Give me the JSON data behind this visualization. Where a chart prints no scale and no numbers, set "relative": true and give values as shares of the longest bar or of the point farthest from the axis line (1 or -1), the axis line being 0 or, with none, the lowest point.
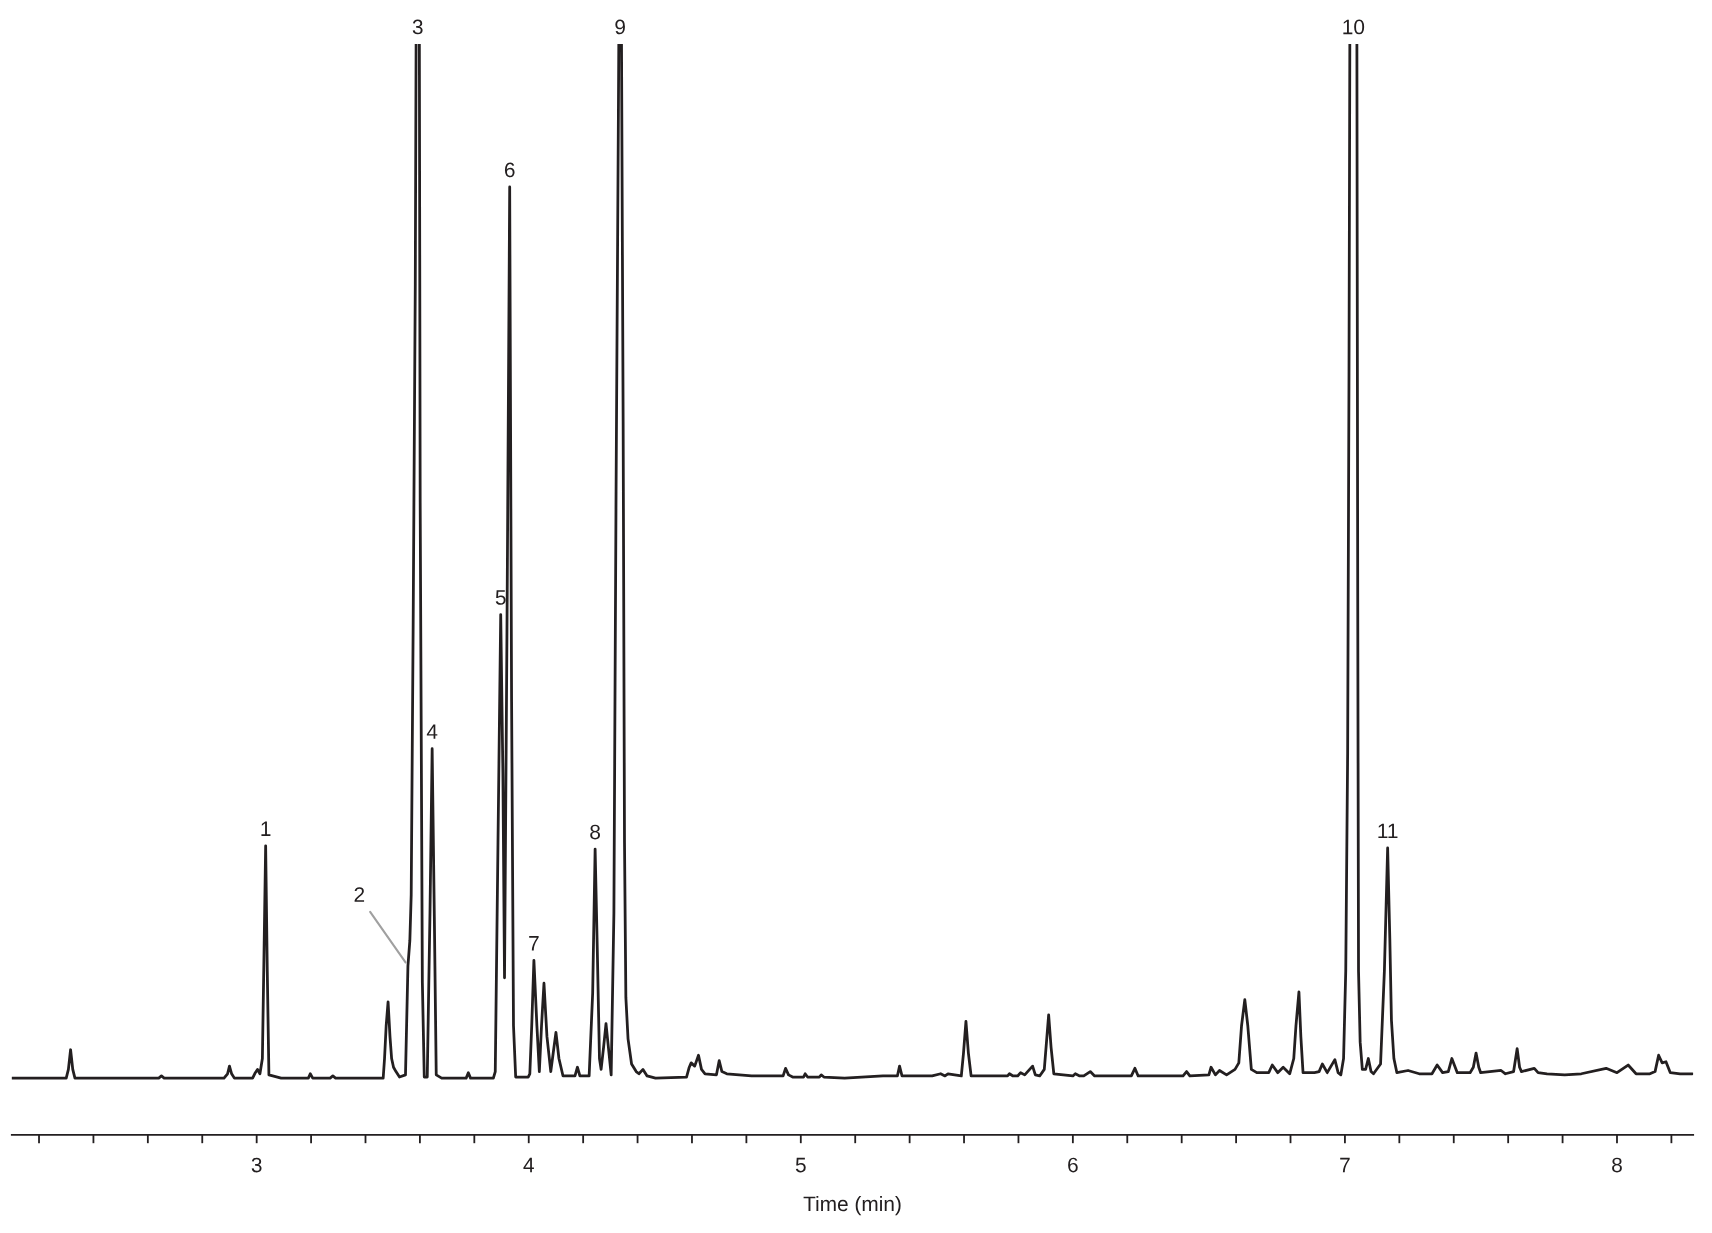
{
  "chart_data": {
    "type": "line",
    "relative": true,
    "xlabel": "Time (min)",
    "color": "#231f20",
    "line_style": "solid",
    "xlim": [
      2.1,
      8.28
    ],
    "xticks": [
      {
        "value": 2.2,
        "label": null
      },
      {
        "value": 2.4,
        "label": null
      },
      {
        "value": 2.6,
        "label": null
      },
      {
        "value": 2.8,
        "label": null
      },
      3,
      {
        "value": 3.2,
        "label": null
      },
      {
        "value": 3.4,
        "label": null
      },
      {
        "value": 3.6,
        "label": null
      },
      {
        "value": 3.8,
        "label": null
      },
      4,
      {
        "value": 4.2,
        "label": null
      },
      {
        "value": 4.4,
        "label": null
      },
      {
        "value": 4.6,
        "label": null
      },
      {
        "value": 4.8,
        "label": null
      },
      5,
      {
        "value": 5.2,
        "label": null
      },
      {
        "value": 5.4,
        "label": null
      },
      {
        "value": 5.6,
        "label": null
      },
      {
        "value": 5.8,
        "label": null
      },
      6,
      {
        "value": 6.2,
        "label": null
      },
      {
        "value": 6.4,
        "label": null
      },
      {
        "value": 6.6,
        "label": null
      },
      {
        "value": 6.8,
        "label": null
      },
      7,
      {
        "value": 7.2,
        "label": null
      },
      {
        "value": 7.4,
        "label": null
      },
      {
        "value": 7.6,
        "label": null
      },
      {
        "value": 7.8,
        "label": null
      },
      8,
      {
        "value": 8.2,
        "label": null
      }
    ],
    "x": [
      2.1,
      2.3,
      2.308,
      2.316,
      2.324,
      2.332,
      2.64,
      2.65,
      2.66,
      2.88,
      2.893,
      2.9,
      2.908,
      2.918,
      2.985,
      2.995,
      3.003,
      3.012,
      3.021,
      3.026,
      3.033,
      3.039,
      3.045,
      3.09,
      3.19,
      3.197,
      3.206,
      3.27,
      3.28,
      3.29,
      3.465,
      3.47,
      3.476,
      3.483,
      3.49,
      3.496,
      3.503,
      3.512,
      3.525,
      3.547,
      3.556,
      3.563,
      3.568,
      3.575,
      3.583,
      3.586,
      3.592,
      3.598,
      3.601,
      3.609,
      3.616,
      3.627,
      3.637,
      3.645,
      3.653,
      3.66,
      3.68,
      3.77,
      3.778,
      3.786,
      3.87,
      3.877,
      3.887,
      3.897,
      3.905,
      3.911,
      3.92,
      3.93,
      3.937,
      3.944,
      3.952,
      3.998,
      4.004,
      4.011,
      4.019,
      4.03,
      4.039,
      4.047,
      4.056,
      4.067,
      4.081,
      4.09,
      4.1,
      4.111,
      4.126,
      4.17,
      4.179,
      4.188,
      4.222,
      4.235,
      4.244,
      4.252,
      4.26,
      4.266,
      4.275,
      4.284,
      4.295,
      4.303,
      4.313,
      4.321,
      4.329,
      4.331,
      4.336,
      4.341,
      4.347,
      4.352,
      4.357,
      4.365,
      4.378,
      4.395,
      4.405,
      4.42,
      4.435,
      4.466,
      4.58,
      4.59,
      4.597,
      4.61,
      4.624,
      4.635,
      4.648,
      4.69,
      4.7,
      4.71,
      4.728,
      4.819,
      4.935,
      4.944,
      4.955,
      4.97,
      5.01,
      5.016,
      5.025,
      5.068,
      5.075,
      5.085,
      5.161,
      5.302,
      5.355,
      5.363,
      5.372,
      5.483,
      5.514,
      5.53,
      5.541,
      5.59,
      5.598,
      5.607,
      5.616,
      5.626,
      5.76,
      5.767,
      5.78,
      5.797,
      5.808,
      5.823,
      5.852,
      5.862,
      5.878,
      5.895,
      5.903,
      5.911,
      5.92,
      5.93,
      6.0,
      6.009,
      6.025,
      6.04,
      6.064,
      6.08,
      6.111,
      6.215,
      6.228,
      6.24,
      6.405,
      6.418,
      6.43,
      6.5,
      6.508,
      6.524,
      6.539,
      6.565,
      6.596,
      6.61,
      6.62,
      6.632,
      6.643,
      6.656,
      6.676,
      6.72,
      6.733,
      6.753,
      6.773,
      6.797,
      6.812,
      6.82,
      6.831,
      6.838,
      6.846,
      6.888,
      6.905,
      6.917,
      6.935,
      6.963,
      6.975,
      6.985,
      6.995,
      7.003,
      7.01,
      7.015,
      7.018,
      7.031,
      7.044,
      7.047,
      7.05,
      7.056,
      7.064,
      7.076,
      7.086,
      7.096,
      7.105,
      7.131,
      7.145,
      7.157,
      7.165,
      7.171,
      7.18,
      7.191,
      7.232,
      7.273,
      7.32,
      7.339,
      7.359,
      7.38,
      7.393,
      7.413,
      7.46,
      7.472,
      7.482,
      7.492,
      7.499,
      7.574,
      7.59,
      7.62,
      7.633,
      7.642,
      7.649,
      7.696,
      7.71,
      7.743,
      7.808,
      7.869,
      7.96,
      8.0,
      8.041,
      8.07,
      8.121,
      8.14,
      8.153,
      8.166,
      8.18,
      8.196,
      8.232,
      8.277
    ],
    "values": [
      0.052,
      0.052,
      0.06,
      0.078,
      0.06,
      0.052,
      0.052,
      0.054,
      0.052,
      0.052,
      0.056,
      0.063,
      0.056,
      0.052,
      0.052,
      0.057,
      0.06,
      0.056,
      0.07,
      0.15,
      0.265,
      0.15,
      0.055,
      0.052,
      0.052,
      0.056,
      0.052,
      0.052,
      0.054,
      0.052,
      0.052,
      0.07,
      0.1,
      0.122,
      0.09,
      0.07,
      0.062,
      0.058,
      0.053,
      0.055,
      0.155,
      0.178,
      0.22,
      0.46,
      0.78,
      1.0,
      null,
      1.0,
      0.58,
      0.14,
      0.053,
      0.053,
      0.203,
      0.354,
      0.2,
      0.055,
      0.052,
      0.052,
      0.057,
      0.052,
      0.052,
      0.058,
      0.268,
      0.477,
      0.332,
      0.144,
      0.461,
      0.869,
      0.397,
      0.1,
      0.053,
      0.053,
      0.056,
      0.1,
      0.16,
      0.1,
      0.058,
      0.1,
      0.139,
      0.09,
      0.058,
      0.075,
      0.094,
      0.07,
      0.054,
      0.054,
      0.062,
      0.054,
      0.054,
      0.13,
      0.262,
      0.17,
      0.07,
      0.06,
      0.08,
      0.102,
      0.075,
      0.055,
      0.203,
      0.59,
      0.912,
      1.0,
      null,
      1.0,
      0.654,
      0.268,
      0.126,
      0.088,
      0.065,
      0.058,
      0.056,
      0.06,
      0.054,
      0.052,
      0.053,
      0.062,
      0.066,
      0.063,
      0.073,
      0.06,
      0.056,
      0.055,
      0.068,
      0.058,
      0.056,
      0.054,
      0.054,
      0.061,
      0.055,
      0.053,
      0.053,
      0.056,
      0.053,
      0.053,
      0.055,
      0.053,
      0.052,
      0.054,
      0.054,
      0.063,
      0.054,
      0.054,
      0.056,
      0.054,
      0.056,
      0.054,
      0.075,
      0.104,
      0.075,
      0.054,
      0.054,
      0.056,
      0.054,
      0.054,
      0.057,
      0.055,
      0.063,
      0.055,
      0.054,
      0.06,
      0.085,
      0.11,
      0.08,
      0.056,
      0.054,
      0.056,
      0.054,
      0.054,
      0.058,
      0.054,
      0.054,
      0.054,
      0.061,
      0.054,
      0.054,
      0.058,
      0.054,
      0.055,
      0.062,
      0.055,
      0.059,
      0.055,
      0.06,
      0.066,
      0.1,
      0.124,
      0.1,
      0.06,
      0.057,
      0.057,
      0.064,
      0.057,
      0.062,
      0.056,
      0.07,
      0.1,
      0.131,
      0.09,
      0.057,
      0.057,
      0.058,
      0.065,
      0.057,
      0.069,
      0.057,
      0.055,
      0.07,
      0.15,
      0.35,
      0.7,
      1.0,
      null,
      1.0,
      0.5,
      0.15,
      0.085,
      0.06,
      0.06,
      0.07,
      0.058,
      0.056,
      0.065,
      0.15,
      0.263,
      0.18,
      0.105,
      0.07,
      0.057,
      0.059,
      0.056,
      0.056,
      0.064,
      0.057,
      0.058,
      0.07,
      0.057,
      0.057,
      0.062,
      0.075,
      0.062,
      0.057,
      0.059,
      0.056,
      0.058,
      0.079,
      0.062,
      0.058,
      0.061,
      0.057,
      0.056,
      0.055,
      0.056,
      0.061,
      0.057,
      0.064,
      0.056,
      0.056,
      0.058,
      0.073,
      0.066,
      0.067,
      0.057,
      0.056,
      0.056
    ],
    "annotations": [
      {
        "text": "1",
        "x": 3.033,
        "y": 0.265
      },
      {
        "text": "2",
        "x": 3.556,
        "y": 0.155
      },
      {
        "text": "3",
        "x": 3.592,
        "y": 1.0
      },
      {
        "text": "4",
        "x": 3.645,
        "y": 0.354
      },
      {
        "text": "5",
        "x": 3.897,
        "y": 0.477
      },
      {
        "text": "6",
        "x": 3.93,
        "y": 0.869
      },
      {
        "text": "7",
        "x": 4.019,
        "y": 0.16
      },
      {
        "text": "8",
        "x": 4.244,
        "y": 0.262
      },
      {
        "text": "9",
        "x": 4.336,
        "y": 1.0
      },
      {
        "text": "10",
        "x": 7.031,
        "y": 1.0
      },
      {
        "text": "11",
        "x": 7.157,
        "y": 0.263
      }
    ]
  }
}
